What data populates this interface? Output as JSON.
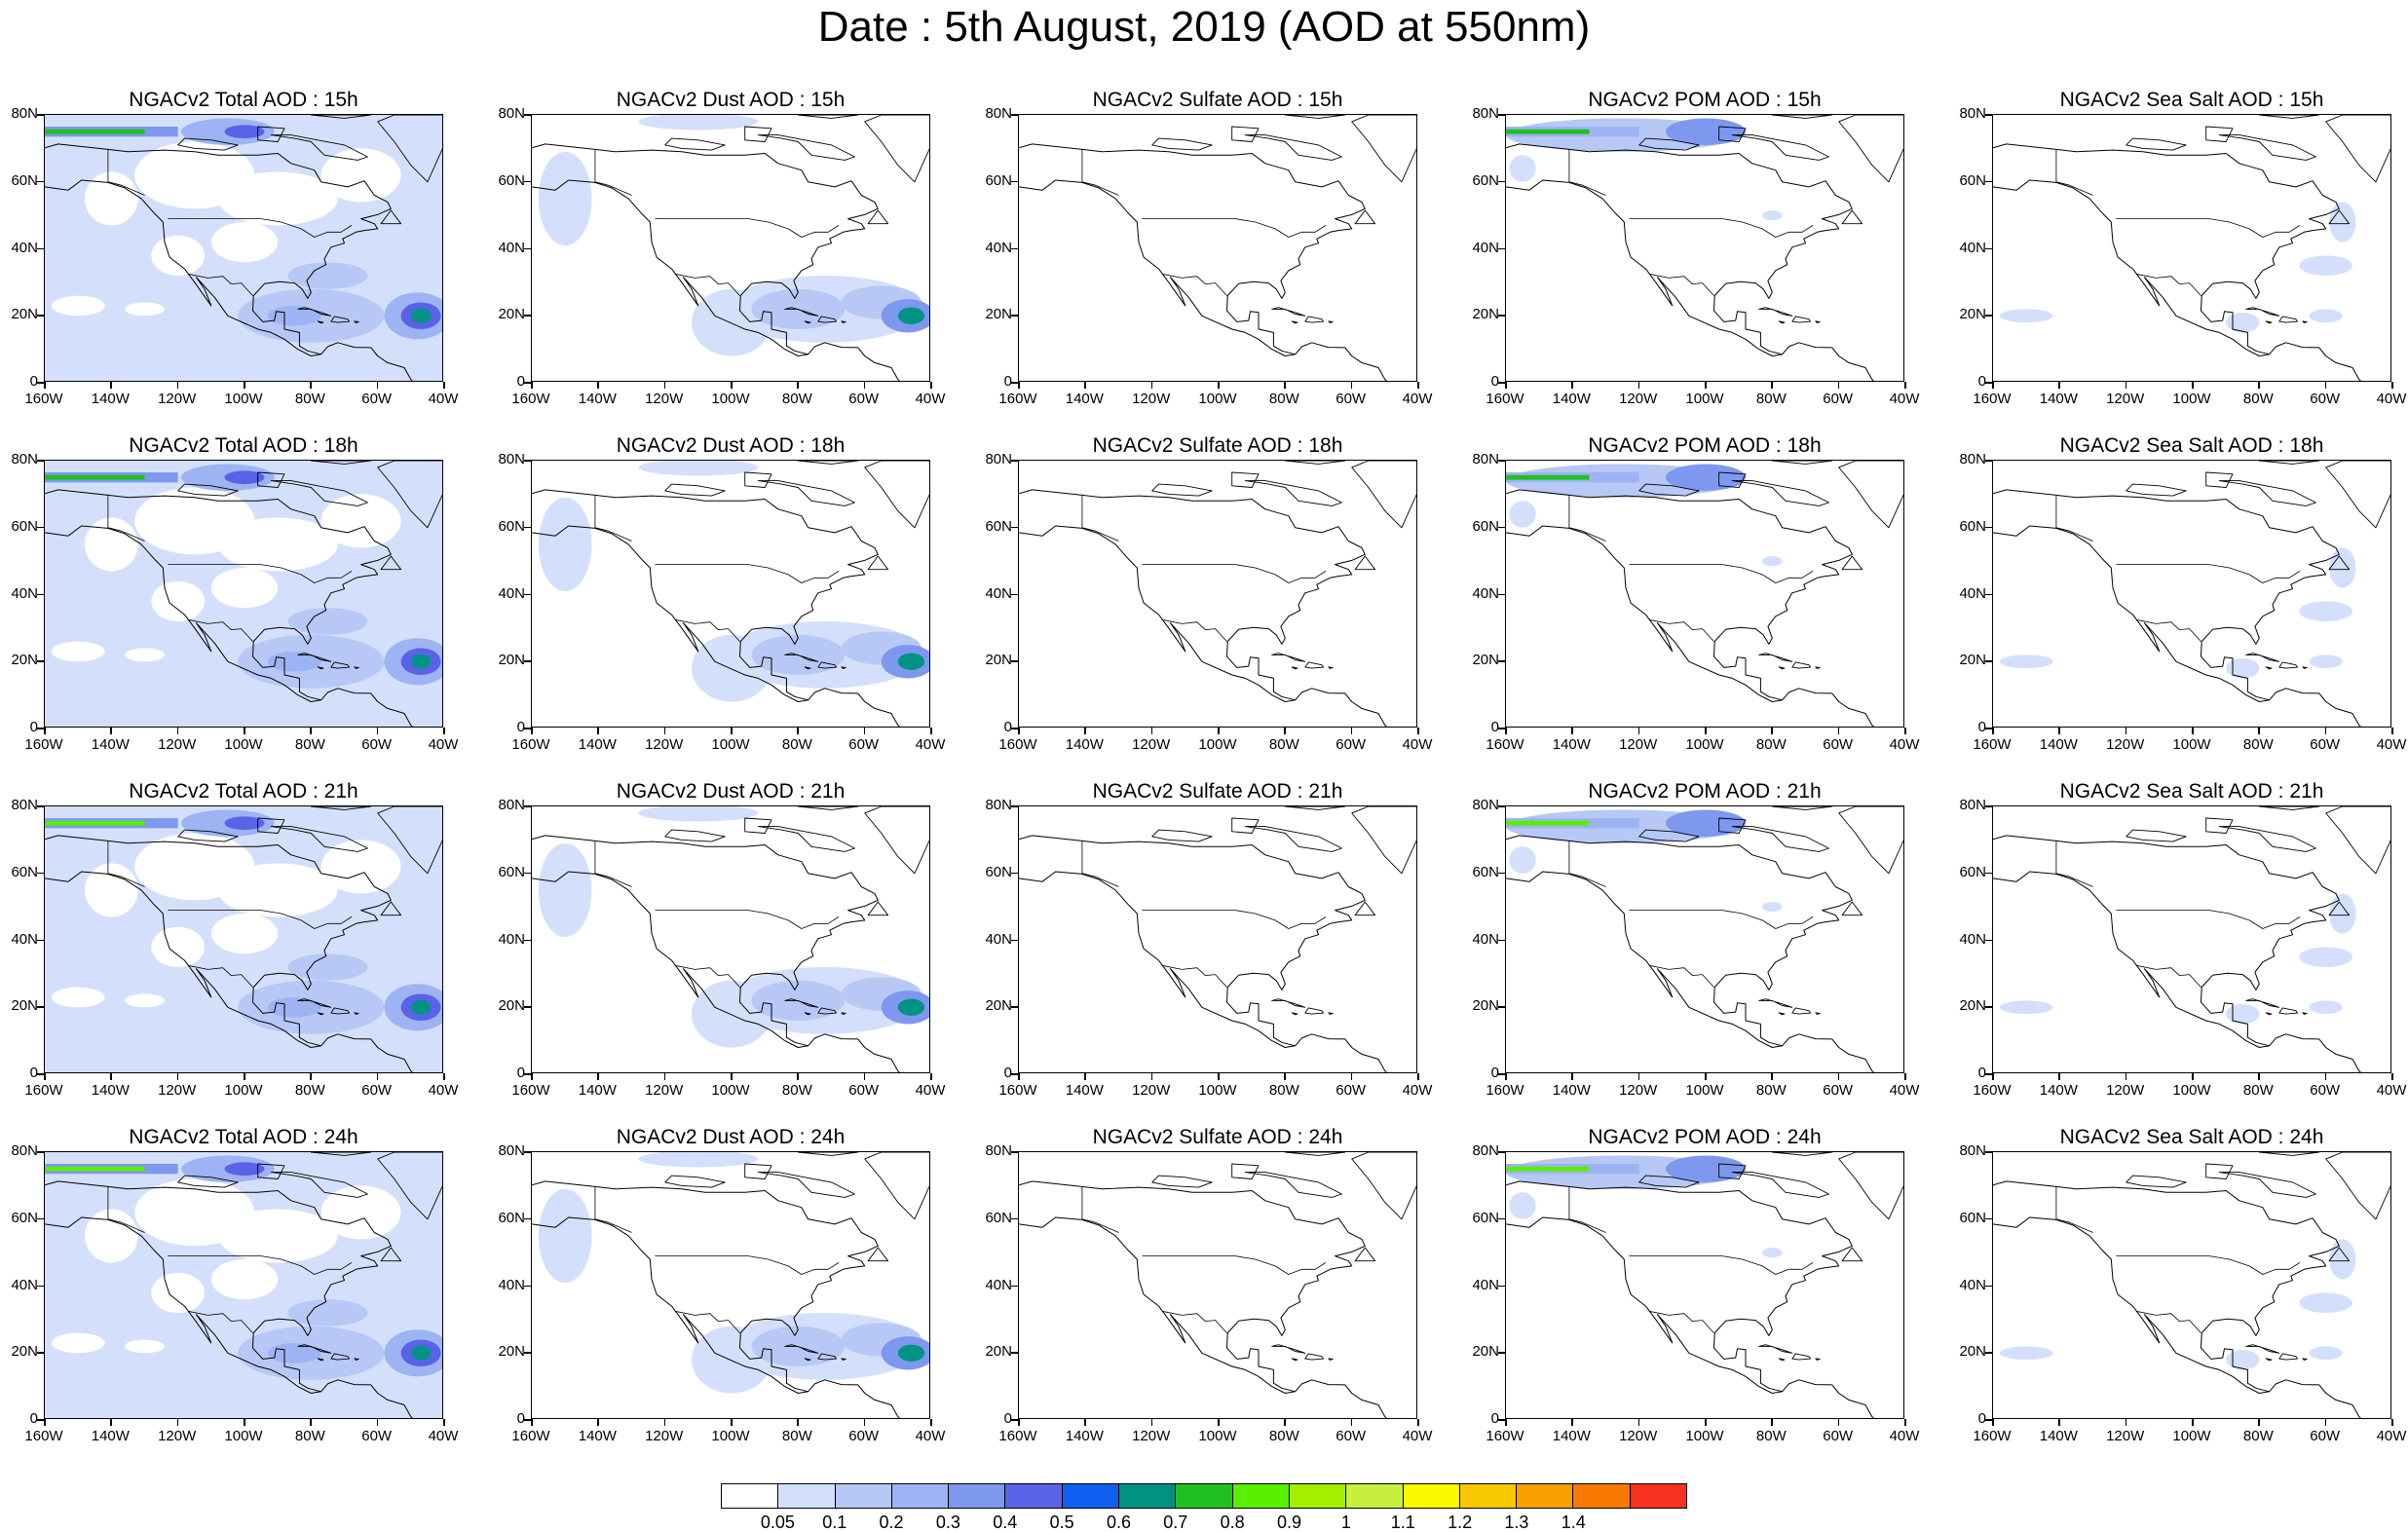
{
  "title": "Date : 5th August, 2019 (AOD at 550nm)",
  "panels": [
    {
      "title": "NGACv2 Total AOD : 15h",
      "field": "total",
      "hour": 15
    },
    {
      "title": "NGACv2 Dust AOD : 15h",
      "field": "dust",
      "hour": 15
    },
    {
      "title": "NGACv2 Sulfate AOD : 15h",
      "field": "sulfate",
      "hour": 15
    },
    {
      "title": "NGACv2 POM AOD : 15h",
      "field": "pom",
      "hour": 15
    },
    {
      "title": "NGACv2 Sea Salt AOD : 15h",
      "field": "seasalt",
      "hour": 15
    },
    {
      "title": "NGACv2 Total AOD : 18h",
      "field": "total",
      "hour": 18
    },
    {
      "title": "NGACv2 Dust AOD : 18h",
      "field": "dust",
      "hour": 18
    },
    {
      "title": "NGACv2 Sulfate AOD : 18h",
      "field": "sulfate",
      "hour": 18
    },
    {
      "title": "NGACv2 POM AOD : 18h",
      "field": "pom",
      "hour": 18
    },
    {
      "title": "NGACv2 Sea Salt AOD : 18h",
      "field": "seasalt",
      "hour": 18
    },
    {
      "title": "NGACv2 Total AOD : 21h",
      "field": "total",
      "hour": 21
    },
    {
      "title": "NGACv2 Dust AOD : 21h",
      "field": "dust",
      "hour": 21
    },
    {
      "title": "NGACv2 Sulfate AOD : 21h",
      "field": "sulfate",
      "hour": 21
    },
    {
      "title": "NGACv2 POM AOD : 21h",
      "field": "pom",
      "hour": 21
    },
    {
      "title": "NGACv2 Sea Salt AOD : 21h",
      "field": "seasalt",
      "hour": 21
    },
    {
      "title": "NGACv2 Total AOD : 24h",
      "field": "total",
      "hour": 24
    },
    {
      "title": "NGACv2 Dust AOD : 24h",
      "field": "dust",
      "hour": 24
    },
    {
      "title": "NGACv2 Sulfate AOD : 24h",
      "field": "sulfate",
      "hour": 24
    },
    {
      "title": "NGACv2 POM AOD : 24h",
      "field": "pom",
      "hour": 24
    },
    {
      "title": "NGACv2 Sea Salt  AOD : 24h",
      "field": "seasalt",
      "hour": 24
    }
  ],
  "y_labels": [
    "80N",
    "60N",
    "40N",
    "20N",
    "0"
  ],
  "x_labels": [
    "160W",
    "140W",
    "120W",
    "100W",
    "80W",
    "60W",
    "40W"
  ],
  "colorbar": {
    "colors": [
      "#ffffff",
      "#d4e0fb",
      "#b7c8f6",
      "#9db3f3",
      "#7e97ef",
      "#5a62e8",
      "#0f5ff0",
      "#009384",
      "#20c020",
      "#58ef00",
      "#a4ef00",
      "#c8ef3e",
      "#f9f900",
      "#f8c800",
      "#f8a000",
      "#f87800",
      "#f83020"
    ],
    "labels": [
      "0.05",
      "0.1",
      "0.2",
      "0.3",
      "0.4",
      "0.5",
      "0.6",
      "0.7",
      "0.8",
      "0.9",
      "1",
      "1.1",
      "1.2",
      "1.3",
      "1.4"
    ]
  }
}
